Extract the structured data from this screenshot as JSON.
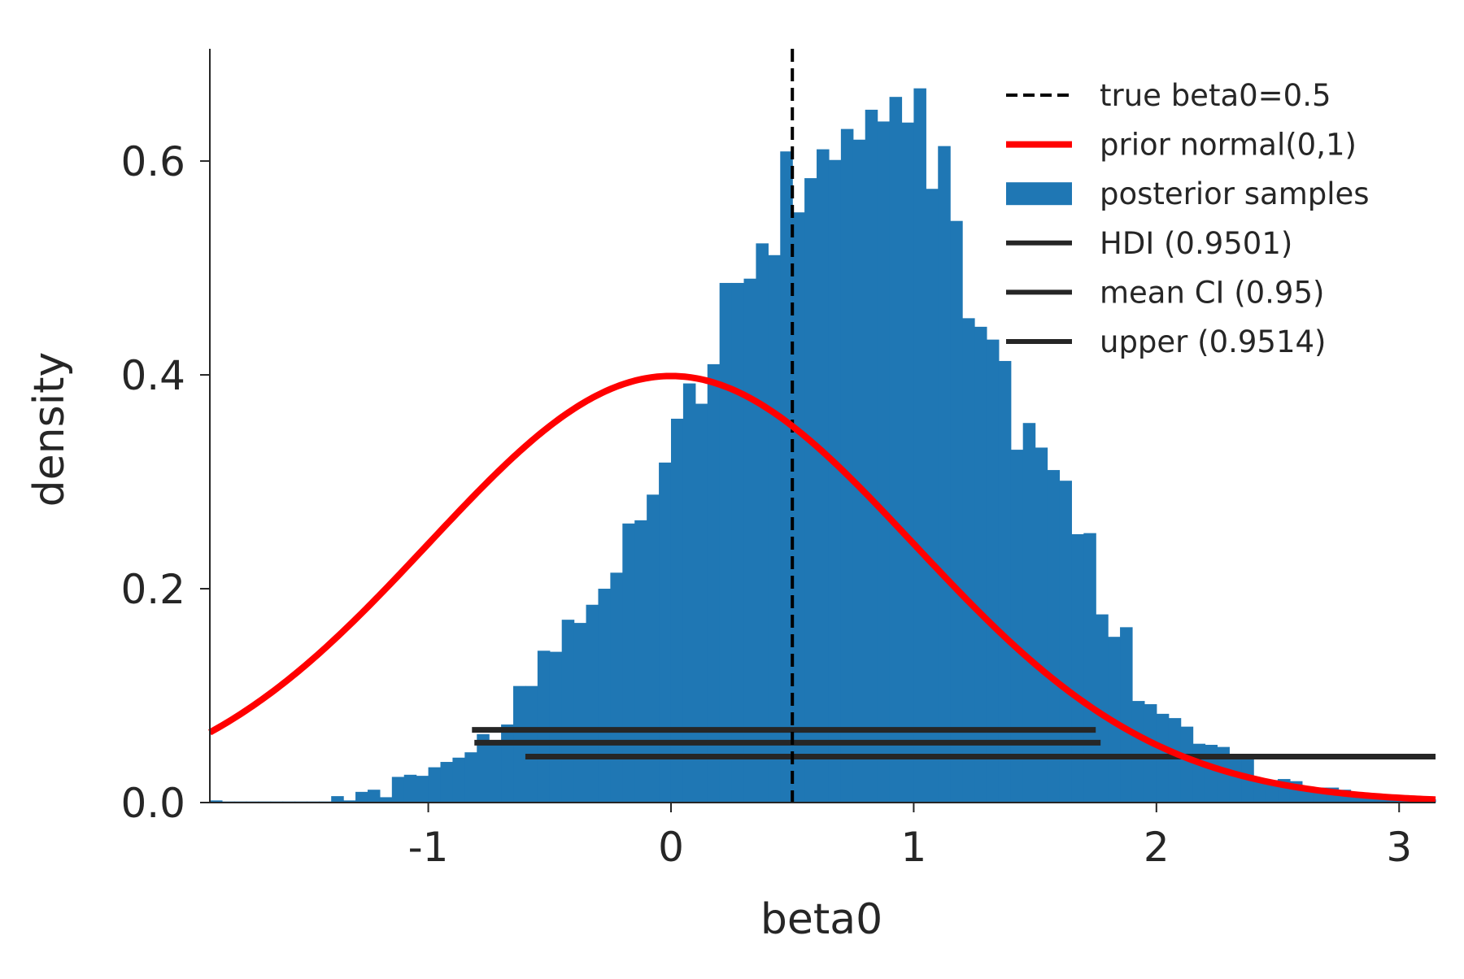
{
  "chart_data": {
    "type": "bar",
    "title": "",
    "xlabel": "beta0",
    "ylabel": "density",
    "xlim": [
      -1.9,
      3.15
    ],
    "ylim": [
      0,
      0.705
    ],
    "xticks": [
      -1,
      0,
      1,
      2,
      3
    ],
    "xtick_labels": [
      "-1",
      "0",
      "1",
      "2",
      "3"
    ],
    "yticks": [
      0.0,
      0.2,
      0.4,
      0.6
    ],
    "ytick_labels": [
      "0.0",
      "0.2",
      "0.4",
      "0.6"
    ],
    "grid": false,
    "legend_position": "top-right",
    "legend": [
      {
        "label": "true beta0=0.5",
        "style": "dashed",
        "color": "#000000"
      },
      {
        "label": "prior normal(0,1)",
        "style": "line",
        "color": "#ff0000"
      },
      {
        "label": "posterior samples",
        "style": "patch",
        "color": "#1f77b4"
      },
      {
        "label": "HDI (0.9501)",
        "style": "line",
        "color": "#262626"
      },
      {
        "label": "mean CI (0.95)",
        "style": "line",
        "color": "#262626"
      },
      {
        "label": "upper (0.9514)",
        "style": "line",
        "color": "#262626"
      }
    ],
    "histogram": {
      "name": "posterior samples",
      "color": "#1f77b4",
      "x_start": -1.95,
      "bin_width": 0.05,
      "values": [
        0.001,
        0.002,
        0.001,
        0.001,
        0.001,
        0.001,
        0.001,
        0.001,
        0.001,
        0.001,
        0.001,
        0.006,
        0.002,
        0.01,
        0.012,
        0.005,
        0.024,
        0.026,
        0.025,
        0.033,
        0.038,
        0.042,
        0.047,
        0.064,
        0.056,
        0.073,
        0.109,
        0.109,
        0.142,
        0.141,
        0.171,
        0.168,
        0.185,
        0.2,
        0.215,
        0.261,
        0.264,
        0.288,
        0.318,
        0.359,
        0.392,
        0.373,
        0.41,
        0.486,
        0.486,
        0.49,
        0.523,
        0.512,
        0.609,
        0.552,
        0.584,
        0.611,
        0.601,
        0.63,
        0.62,
        0.648,
        0.637,
        0.66,
        0.636,
        0.668,
        0.574,
        0.614,
        0.544,
        0.453,
        0.445,
        0.433,
        0.413,
        0.33,
        0.355,
        0.332,
        0.311,
        0.301,
        0.251,
        0.252,
        0.176,
        0.155,
        0.164,
        0.095,
        0.092,
        0.083,
        0.079,
        0.071,
        0.055,
        0.054,
        0.052,
        0.045,
        0.042,
        0.02,
        0.021,
        0.022,
        0.02,
        0.014,
        0.014,
        0.014,
        0.012,
        0.009,
        0.008,
        0.005,
        0.006,
        0.005,
        0.004,
        0.003,
        0.003,
        0.002,
        0.002,
        0.001,
        0.001
      ]
    },
    "prior_curve": {
      "name": "prior normal(0,1)",
      "mean": 0,
      "sd": 1,
      "color": "#ff0000"
    },
    "vertical_line": {
      "name": "true beta0=0.5",
      "x": 0.5,
      "style": "dashed",
      "color": "#000000"
    },
    "intervals": [
      {
        "name": "HDI (0.9501)",
        "x_from": -0.82,
        "x_to": 1.75,
        "y": 0.068,
        "color": "#262626"
      },
      {
        "name": "mean CI (0.95)",
        "x_from": -0.81,
        "x_to": 1.77,
        "y": 0.056,
        "color": "#262626"
      },
      {
        "name": "upper (0.9514)",
        "x_from": -0.6,
        "x_to": 3.15,
        "y": 0.043,
        "color": "#262626"
      }
    ]
  }
}
